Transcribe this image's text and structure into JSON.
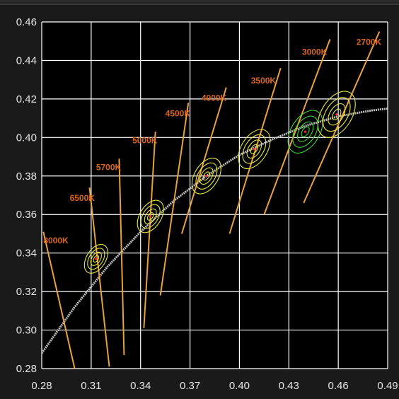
{
  "chart_data": {
    "type": "scatter",
    "title": "",
    "xlabel": "",
    "ylabel": "",
    "xlim": [
      0.28,
      0.49
    ],
    "ylim": [
      0.28,
      0.46
    ],
    "grid": true,
    "x_ticks": [
      "0.28",
      "0.31",
      "0.34",
      "0.37",
      "0.40",
      "0.43",
      "0.46",
      "0.49"
    ],
    "y_ticks": [
      "0.28",
      "0.30",
      "0.32",
      "0.34",
      "0.36",
      "0.38",
      "0.40",
      "0.42",
      "0.44",
      "0.46"
    ],
    "x_tick_values": [
      0.28,
      0.31,
      0.34,
      0.37,
      0.4,
      0.43,
      0.46,
      0.49
    ],
    "y_tick_values": [
      0.28,
      0.3,
      0.32,
      0.34,
      0.36,
      0.38,
      0.4,
      0.42,
      0.44,
      0.46
    ],
    "planckian_locus": [
      {
        "x": 0.28,
        "y": 0.288
      },
      {
        "x": 0.3,
        "y": 0.312
      },
      {
        "x": 0.32,
        "y": 0.333
      },
      {
        "x": 0.34,
        "y": 0.351
      },
      {
        "x": 0.36,
        "y": 0.367
      },
      {
        "x": 0.38,
        "y": 0.38
      },
      {
        "x": 0.4,
        "y": 0.391
      },
      {
        "x": 0.42,
        "y": 0.399
      },
      {
        "x": 0.44,
        "y": 0.406
      },
      {
        "x": 0.46,
        "y": 0.411
      },
      {
        "x": 0.48,
        "y": 0.414
      },
      {
        "x": 0.49,
        "y": 0.415
      }
    ],
    "isotherms": [
      {
        "label": "8000K",
        "x1": 0.281,
        "y1": 0.351,
        "x2": 0.3,
        "y2": 0.28,
        "label_x": 0.281,
        "label_y": 0.345
      },
      {
        "label": "6500K",
        "x1": 0.309,
        "y1": 0.374,
        "x2": 0.321,
        "y2": 0.281,
        "label_x": 0.297,
        "label_y": 0.367
      },
      {
        "label": "5700K",
        "x1": 0.327,
        "y1": 0.389,
        "x2": 0.33,
        "y2": 0.287,
        "label_x": 0.313,
        "label_y": 0.383
      },
      {
        "label": "5000K",
        "x1": 0.349,
        "y1": 0.403,
        "x2": 0.342,
        "y2": 0.301,
        "label_x": 0.335,
        "label_y": 0.397
      },
      {
        "label": "4500K",
        "x1": 0.369,
        "y1": 0.418,
        "x2": 0.352,
        "y2": 0.318,
        "label_x": 0.355,
        "label_y": 0.411
      },
      {
        "label": "4000K",
        "x1": 0.392,
        "y1": 0.426,
        "x2": 0.365,
        "y2": 0.35,
        "label_x": 0.377,
        "label_y": 0.419
      },
      {
        "label": "3500K",
        "x1": 0.425,
        "y1": 0.436,
        "x2": 0.394,
        "y2": 0.35,
        "label_x": 0.407,
        "label_y": 0.428
      },
      {
        "label": "3000K",
        "x1": 0.455,
        "y1": 0.451,
        "x2": 0.415,
        "y2": 0.36,
        "label_x": 0.438,
        "label_y": 0.443
      },
      {
        "label": "2700K",
        "x1": 0.485,
        "y1": 0.455,
        "x2": 0.439,
        "y2": 0.366,
        "label_x": 0.471,
        "label_y": 0.448
      }
    ],
    "ellipses": [
      {
        "cct": "6500K",
        "x": 0.313,
        "y": 0.337,
        "color": "#e6e63a"
      },
      {
        "cct": "5000K",
        "x": 0.346,
        "y": 0.359,
        "color": "#e6e63a"
      },
      {
        "cct": "4000K",
        "x": 0.38,
        "y": 0.38,
        "color": "#e6e63a"
      },
      {
        "cct": "3500K",
        "x": 0.409,
        "y": 0.394,
        "color": "#e6e63a"
      },
      {
        "cct": "3000K",
        "x": 0.44,
        "y": 0.403,
        "color": "#3ad13a"
      },
      {
        "cct": "2700K",
        "x": 0.459,
        "y": 0.412,
        "color": "#e6e63a"
      }
    ],
    "colors": {
      "background": "#000000",
      "grid": "#ffffff",
      "isotherm": "#e8a040",
      "locus": "#bdbdbd",
      "label": "#d9651c",
      "center_marker": "#ff3030"
    }
  }
}
